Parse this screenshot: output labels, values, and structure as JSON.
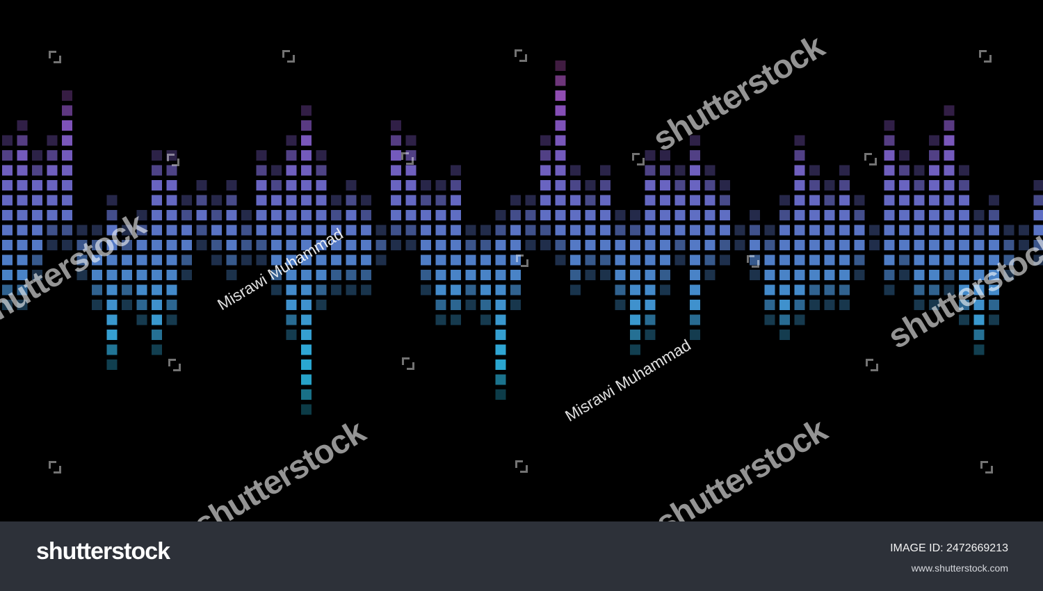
{
  "artwork": {
    "background": "#000000",
    "colors": [
      "#d24fb1",
      "#8d55c6",
      "#6f6fd2",
      "#4f8ed8",
      "#31b7e7",
      "#1aa0b8"
    ]
  },
  "watermarks": {
    "brand": "shutterstock",
    "credit": "Misrawi Muhammad"
  },
  "footer": {
    "logo_text": "shutterstock",
    "image_id": "IMAGE ID: 2472669213",
    "url": "www.shutterstock.com"
  }
}
